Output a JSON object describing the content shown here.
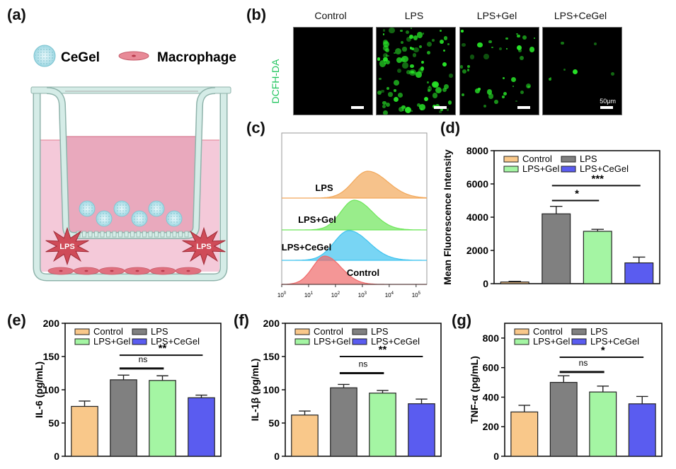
{
  "panel_labels": {
    "a": "(a)",
    "b": "(b)",
    "c": "(c)",
    "d": "(d)",
    "e": "(e)",
    "f": "(f)",
    "g": "(g)"
  },
  "schematic": {
    "legend": [
      {
        "icon": "cegel-bead-icon",
        "label": "CeGel"
      },
      {
        "icon": "macrophage-cell-icon",
        "label": "Macrophage"
      }
    ],
    "lps_label": "LPS",
    "colors": {
      "well": "#d5ece7",
      "well_stroke": "#8fb3ab",
      "outer_medium": "#f4c9d9",
      "inner_medium": "#e9a9bd",
      "lps": "#cf4b58",
      "cell": "#e0707f",
      "bead": "#bfe8ef"
    }
  },
  "microscopy": {
    "stain_label": "DCFH-DA",
    "stain_color": "#22c55e",
    "scale_label": "50μm",
    "groups": [
      {
        "name": "Control",
        "signal": "none"
      },
      {
        "name": "LPS",
        "signal": "high"
      },
      {
        "name": "LPS+Gel",
        "signal": "medium"
      },
      {
        "name": "LPS+CeGel",
        "signal": "low"
      }
    ]
  },
  "colors": {
    "Control": "#f9c88a",
    "LPS": "#808080",
    "LPS+Gel": "#a4f5a3",
    "LPS+CeGel": "#5a5cf0"
  },
  "chart_data": [
    {
      "id": "c",
      "type": "area",
      "title": "Flow cytometry histograms",
      "xlabel": "",
      "x_scale": "log",
      "x_ticks": [
        "10^0",
        "10^1",
        "10^2",
        "10^3",
        "10^4",
        "10^5"
      ],
      "xlim_log10": [
        0,
        5.4
      ],
      "series": [
        {
          "name": "LPS",
          "color": "#f2a85a",
          "peak_log10": 3.2,
          "spread": 0.55
        },
        {
          "name": "LPS+Gel",
          "color": "#6ee65a",
          "peak_log10": 2.7,
          "spread": 0.5
        },
        {
          "name": "LPS+CeGel",
          "color": "#3fc3ef",
          "peak_log10": 2.5,
          "spread": 0.55
        },
        {
          "name": "Control",
          "color": "#f06a6a",
          "peak_log10": 1.6,
          "spread": 0.45
        }
      ]
    },
    {
      "id": "d",
      "type": "bar",
      "categories": [
        "Control",
        "LPS",
        "LPS+Gel",
        "LPS+CeGel"
      ],
      "values": [
        100,
        4200,
        3150,
        1250
      ],
      "errors": [
        40,
        450,
        120,
        350
      ],
      "ylabel": "Mean Fluorescence Intensity",
      "ylim": [
        0,
        8000
      ],
      "yticks": [
        0,
        2000,
        4000,
        6000,
        8000
      ],
      "legend": [
        "Control",
        "LPS",
        "LPS+Gel",
        "LPS+CeGel"
      ],
      "legend_position": "top-left",
      "significance": [
        {
          "from": "LPS",
          "to": "LPS+Gel",
          "label": "*",
          "y": 5000
        },
        {
          "from": "LPS",
          "to": "LPS+CeGel",
          "label": "***",
          "y": 5900
        }
      ]
    },
    {
      "id": "e",
      "type": "bar",
      "categories": [
        "Control",
        "LPS",
        "LPS+Gel",
        "LPS+CeGel"
      ],
      "values": [
        75,
        115,
        114,
        88
      ],
      "errors": [
        8,
        7,
        7,
        4
      ],
      "ylabel": "IL-6 (pg/mL)",
      "ylim": [
        0,
        200
      ],
      "yticks": [
        0,
        50,
        100,
        150,
        200
      ],
      "legend": [
        "Control",
        "LPS",
        "LPS+Gel",
        "LPS+CeGel"
      ],
      "legend_position": "top-left",
      "significance": [
        {
          "from": "LPS",
          "to": "LPS+Gel",
          "label": "ns",
          "y": 132
        },
        {
          "from": "LPS",
          "to": "LPS+CeGel",
          "label": "**",
          "y": 152
        }
      ]
    },
    {
      "id": "f",
      "type": "bar",
      "categories": [
        "Control",
        "LPS",
        "LPS+Gel",
        "LPS+CeGel"
      ],
      "values": [
        62,
        103,
        95,
        79
      ],
      "errors": [
        6,
        5,
        4,
        7
      ],
      "ylabel": "IL-1β (pg/mL)",
      "ylim": [
        0,
        200
      ],
      "yticks": [
        0,
        50,
        100,
        150,
        200
      ],
      "legend": [
        "Control",
        "LPS",
        "LPS+Gel",
        "LPS+CeGel"
      ],
      "legend_position": "top-left",
      "significance": [
        {
          "from": "LPS",
          "to": "LPS+Gel",
          "label": "ns",
          "y": 125
        },
        {
          "from": "LPS",
          "to": "LPS+CeGel",
          "label": "**",
          "y": 150
        }
      ]
    },
    {
      "id": "g",
      "type": "bar",
      "categories": [
        "Control",
        "LPS",
        "LPS+Gel",
        "LPS+CeGel"
      ],
      "values": [
        300,
        500,
        435,
        355
      ],
      "errors": [
        45,
        45,
        40,
        50
      ],
      "ylabel": "TNF-α (pg/mL)",
      "ylim": [
        0,
        900
      ],
      "yticks": [
        0,
        200,
        400,
        600,
        800
      ],
      "legend": [
        "Control",
        "LPS",
        "LPS+Gel",
        "LPS+CeGel"
      ],
      "legend_position": "top-left",
      "significance": [
        {
          "from": "LPS",
          "to": "LPS+Gel",
          "label": "ns",
          "y": 570
        },
        {
          "from": "LPS",
          "to": "LPS+CeGel",
          "label": "*",
          "y": 670
        }
      ]
    }
  ]
}
